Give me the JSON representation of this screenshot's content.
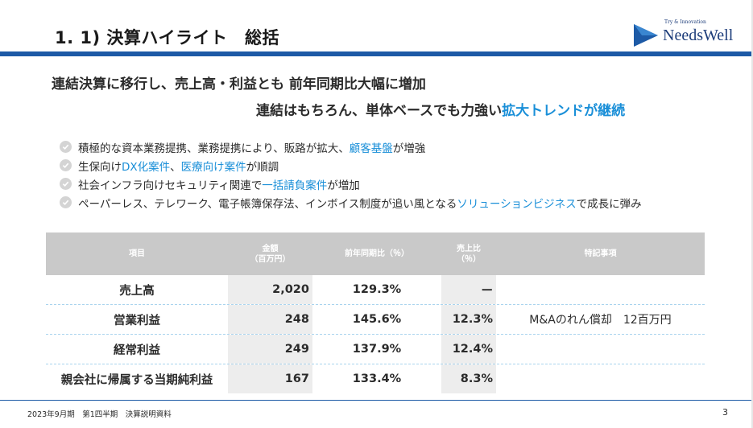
{
  "header": {
    "title": "1. 1) 決算ハイライト　総括",
    "logo_tagline": "Try & Innovation",
    "logo_text": "NeedsWell"
  },
  "headline": {
    "line1": "連結決算に移行し、売上高・利益とも 前年同期比大幅に増加",
    "line2_prefix": "連結はもちろん、単体ベースでも力強い",
    "line2_accent": "拡大トレンドが継続"
  },
  "bullets": [
    {
      "before": "積極的な資本業務提携、業務提携により、販路が拡大、",
      "hl": "顧客基盤",
      "after": "が増強",
      "hl2": "",
      "after2": ""
    },
    {
      "before": "生保向け",
      "hl": "DX化案件",
      "after": "、",
      "hl2": "医療向け案件",
      "after2": "が順調"
    },
    {
      "before": "社会インフラ向けセキュリティ関連で",
      "hl": "一括請負案件",
      "after": "が増加",
      "hl2": "",
      "after2": ""
    },
    {
      "before": "ペーパーレス、テレワーク、電子帳簿保存法、インボイス制度が追い風となる",
      "hl": "ソリューションビジネス",
      "after": "で成長に弾み",
      "hl2": "",
      "after2": ""
    }
  ],
  "table": {
    "headers": {
      "item": "項目",
      "amount_line1": "金額",
      "amount_line2": "（百万円）",
      "yoy": "前年同期比（％）",
      "ratio_line1": "売上比",
      "ratio_line2": "（％）",
      "notes": "特記事項"
    },
    "rows": [
      {
        "item": "売上高",
        "amount": "2,020",
        "yoy": "129.3%",
        "ratio": "ー",
        "note": ""
      },
      {
        "item": "営業利益",
        "amount": "248",
        "yoy": "145.6%",
        "ratio": "12.3%",
        "note": "M&Aのれん償却　12百万円"
      },
      {
        "item": "経常利益",
        "amount": "249",
        "yoy": "137.9%",
        "ratio": "12.4%",
        "note": ""
      },
      {
        "item": "親会社に帰属する当期純利益",
        "amount": "167",
        "yoy": "133.4%",
        "ratio": "8.3%",
        "note": ""
      }
    ]
  },
  "footer": {
    "text": "2023年9月期　第1四半期　決算説明資料",
    "page": "3"
  },
  "colors": {
    "brand_blue": "#1d5aa6",
    "accent_blue": "#1a8fd8",
    "table_header": "#c9c9c9"
  }
}
